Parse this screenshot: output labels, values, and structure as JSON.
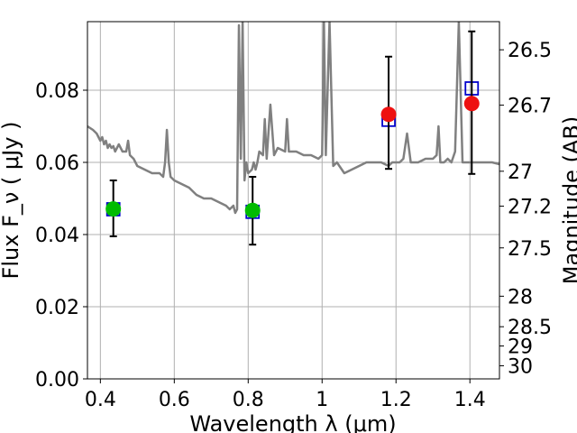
{
  "chart_data": {
    "type": "scatter",
    "xlabel": "Wavelength  λ (μm)",
    "ylabel": "Flux  F_ν  ( μJy )",
    "ylabel_right": "Magnitude (AB)",
    "xlim": [
      0.365,
      1.48
    ],
    "ylim": [
      0.0,
      0.099
    ],
    "grid": true,
    "x_ticks": [
      0.4,
      0.6,
      0.8,
      1.0,
      1.2,
      1.4
    ],
    "x_tick_labels": [
      "0.4",
      "0.6",
      "0.8",
      "1",
      "1.2",
      "1.4"
    ],
    "y_ticks": [
      0.0,
      0.02,
      0.04,
      0.06,
      0.08
    ],
    "y_tick_labels": [
      "0.00",
      "0.02",
      "0.04",
      "0.06",
      "0.08"
    ],
    "mag_ticks": [
      26.5,
      26.7,
      27,
      27.2,
      27.5,
      28,
      28.5,
      29,
      30
    ],
    "mag_tick_labels": [
      "26.5",
      "26.7",
      "27",
      "27.2",
      "27.5",
      "28",
      "28.5",
      "29",
      "30"
    ],
    "colors": {
      "spectrum": "#808080",
      "model_square": "#0000cc",
      "optical_point": "#00bb00",
      "nir_point": "#ee1111",
      "errorbar": "#000000",
      "grid": "#b0b0b0"
    },
    "series": [
      {
        "kind": "spectrum",
        "x": [
          0.365,
          0.38,
          0.39,
          0.4,
          0.405,
          0.41,
          0.415,
          0.42,
          0.425,
          0.43,
          0.435,
          0.44,
          0.45,
          0.46,
          0.47,
          0.475,
          0.48,
          0.49,
          0.5,
          0.52,
          0.54,
          0.56,
          0.57,
          0.575,
          0.58,
          0.585,
          0.59,
          0.6,
          0.62,
          0.64,
          0.66,
          0.68,
          0.7,
          0.72,
          0.74,
          0.75,
          0.76,
          0.765,
          0.77,
          0.775,
          0.78,
          0.785,
          0.79,
          0.795,
          0.8,
          0.81,
          0.815,
          0.82,
          0.825,
          0.83,
          0.84,
          0.845,
          0.85,
          0.86,
          0.87,
          0.88,
          0.9,
          0.905,
          0.91,
          0.93,
          0.95,
          0.97,
          0.99,
          1.0,
          1.005,
          1.01,
          1.02,
          1.03,
          1.04,
          1.06,
          1.08,
          1.1,
          1.12,
          1.14,
          1.16,
          1.18,
          1.19,
          1.2,
          1.21,
          1.22,
          1.23,
          1.24,
          1.26,
          1.28,
          1.3,
          1.31,
          1.315,
          1.32,
          1.33,
          1.34,
          1.35,
          1.36,
          1.37,
          1.38,
          1.39,
          1.4,
          1.41,
          1.42,
          1.44,
          1.46,
          1.48
        ],
        "values": [
          0.07,
          0.069,
          0.068,
          0.066,
          0.067,
          0.065,
          0.066,
          0.064,
          0.065,
          0.064,
          0.0645,
          0.063,
          0.065,
          0.063,
          0.063,
          0.066,
          0.062,
          0.061,
          0.059,
          0.058,
          0.057,
          0.057,
          0.056,
          0.06,
          0.069,
          0.06,
          0.056,
          0.055,
          0.054,
          0.053,
          0.051,
          0.05,
          0.05,
          0.049,
          0.048,
          0.047,
          0.048,
          0.046,
          0.047,
          0.098,
          0.061,
          0.099,
          0.055,
          0.06,
          0.057,
          0.058,
          0.06,
          0.058,
          0.06,
          0.063,
          0.062,
          0.072,
          0.061,
          0.076,
          0.062,
          0.064,
          0.063,
          0.072,
          0.063,
          0.063,
          0.062,
          0.062,
          0.061,
          0.062,
          0.099,
          0.062,
          0.099,
          0.059,
          0.06,
          0.057,
          0.058,
          0.059,
          0.06,
          0.06,
          0.06,
          0.059,
          0.06,
          0.06,
          0.06,
          0.061,
          0.068,
          0.06,
          0.06,
          0.061,
          0.061,
          0.062,
          0.07,
          0.06,
          0.06,
          0.061,
          0.06,
          0.063,
          0.099,
          0.06,
          0.06,
          0.06,
          0.06,
          0.06,
          0.06,
          0.06,
          0.0595
        ]
      },
      {
        "kind": "model_squares",
        "x": [
          0.435,
          0.812,
          1.18,
          1.405
        ],
        "values": [
          0.047,
          0.0463,
          0.0718,
          0.0805
        ]
      },
      {
        "kind": "observed_optical",
        "x": [
          0.435,
          0.812
        ],
        "values": [
          0.0471,
          0.0467
        ],
        "err_low": [
          0.0395,
          0.0372
        ],
        "err_high": [
          0.055,
          0.056
        ]
      },
      {
        "kind": "observed_nir",
        "x": [
          1.18,
          1.405
        ],
        "values": [
          0.0733,
          0.0763
        ],
        "err_low": [
          0.0582,
          0.0568
        ],
        "err_high": [
          0.0893,
          0.0963
        ]
      }
    ]
  }
}
